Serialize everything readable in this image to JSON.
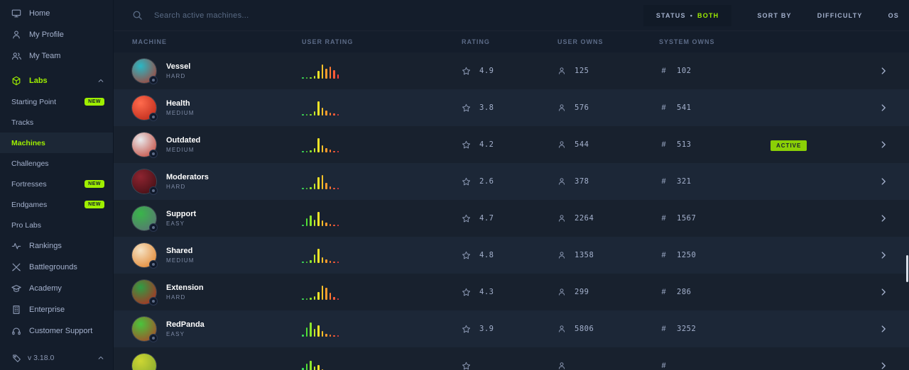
{
  "colors": {
    "accent": "#9fef00",
    "background": "#141d2b",
    "row_base": "#18212e",
    "row_alt": "#1c2737",
    "text_muted": "#a4b1cd"
  },
  "sidebar": {
    "top_items": [
      {
        "label": "Home"
      },
      {
        "label": "My Profile"
      },
      {
        "label": "My Team"
      }
    ],
    "labs": {
      "label": "Labs"
    },
    "labs_children": [
      {
        "label": "Starting Point",
        "badge": "NEW"
      },
      {
        "label": "Tracks",
        "badge": ""
      },
      {
        "label": "Machines",
        "badge": ""
      },
      {
        "label": "Challenges",
        "badge": ""
      },
      {
        "label": "Fortresses",
        "badge": "NEW"
      },
      {
        "label": "Endgames",
        "badge": "NEW"
      },
      {
        "label": "Pro Labs",
        "badge": ""
      }
    ],
    "bottom_items": [
      {
        "label": "Rankings"
      },
      {
        "label": "Battlegrounds"
      },
      {
        "label": "Academy"
      },
      {
        "label": "Enterprise"
      },
      {
        "label": "Customer Support"
      }
    ],
    "version": "v 3.18.0"
  },
  "topbar": {
    "search_placeholder": "Search active machines...",
    "filters": {
      "status_label": "STATUS",
      "status_sep": "•",
      "status_value": "BOTH",
      "sort_by": "SORT BY",
      "difficulty": "DIFFICULTY",
      "os": "OS"
    }
  },
  "icons": {
    "hash": "#"
  },
  "table": {
    "headers": [
      "MACHINE",
      "USER RATING",
      "RATING",
      "USER OWNS",
      "SYSTEM OWNS"
    ],
    "bar_colors": [
      "#3ddc5a",
      "#51e033",
      "#8ee62e",
      "#c3e82a",
      "#f5e428",
      "#ffc229",
      "#ff9b2b",
      "#ff7a31",
      "#ff5b38",
      "#ff4040"
    ],
    "rows": [
      {
        "name": "Vessel",
        "difficulty": "HARD",
        "rating": "4.9",
        "user_owns": "125",
        "system_owns": "102",
        "status": "",
        "avatar": [
          "#29b8c5",
          "#b33427"
        ],
        "bars": [
          6,
          8,
          10,
          22,
          55,
          100,
          70,
          85,
          60,
          30
        ]
      },
      {
        "name": "Health",
        "difficulty": "MEDIUM",
        "rating": "3.8",
        "user_owns": "576",
        "system_owns": "541",
        "status": "",
        "avatar": [
          "#ff6b4d",
          "#b52214"
        ],
        "bars": [
          6,
          8,
          12,
          30,
          100,
          55,
          35,
          22,
          14,
          10
        ]
      },
      {
        "name": "Outdated",
        "difficulty": "MEDIUM",
        "rating": "4.2",
        "user_owns": "544",
        "system_owns": "513",
        "status": "ACTIVE",
        "avatar": [
          "#e8eaed",
          "#c0392b"
        ],
        "bars": [
          6,
          8,
          14,
          28,
          100,
          48,
          30,
          18,
          12,
          8
        ]
      },
      {
        "name": "Moderators",
        "difficulty": "HARD",
        "rating": "2.6",
        "user_owns": "378",
        "system_owns": "321",
        "status": "",
        "avatar": [
          "#8e2430",
          "#3a0d12"
        ],
        "bars": [
          6,
          10,
          16,
          40,
          85,
          100,
          45,
          22,
          12,
          8
        ]
      },
      {
        "name": "Support",
        "difficulty": "EASY",
        "rating": "4.7",
        "user_owns": "2264",
        "system_owns": "1567",
        "status": "",
        "avatar": [
          "#39b54a",
          "#5d6d79"
        ],
        "bars": [
          10,
          55,
          75,
          45,
          100,
          40,
          25,
          15,
          10,
          8
        ]
      },
      {
        "name": "Shared",
        "difficulty": "MEDIUM",
        "rating": "4.8",
        "user_owns": "1358",
        "system_owns": "1250",
        "status": "",
        "avatar": [
          "#f5e3c5",
          "#e07b1f"
        ],
        "bars": [
          6,
          12,
          22,
          60,
          100,
          42,
          24,
          14,
          10,
          8
        ]
      },
      {
        "name": "Extension",
        "difficulty": "HARD",
        "rating": "4.3",
        "user_owns": "299",
        "system_owns": "286",
        "status": "",
        "avatar": [
          "#2e9e44",
          "#c01f1f"
        ],
        "bars": [
          6,
          8,
          14,
          24,
          55,
          100,
          85,
          50,
          22,
          10
        ]
      },
      {
        "name": "RedPanda",
        "difficulty": "EASY",
        "rating": "3.9",
        "user_owns": "5806",
        "system_owns": "3252",
        "status": "",
        "avatar": [
          "#49c53c",
          "#b23a27"
        ],
        "bars": [
          14,
          65,
          100,
          55,
          80,
          38,
          22,
          14,
          10,
          8
        ]
      },
      {
        "name": "",
        "difficulty": "",
        "rating": "",
        "user_owns": "",
        "system_owns": "",
        "status": "",
        "avatar": [
          "#cdd633",
          "#7da32f"
        ],
        "bars": [
          40,
          70,
          90,
          50,
          60,
          30,
          18,
          10,
          8,
          6
        ]
      }
    ]
  }
}
